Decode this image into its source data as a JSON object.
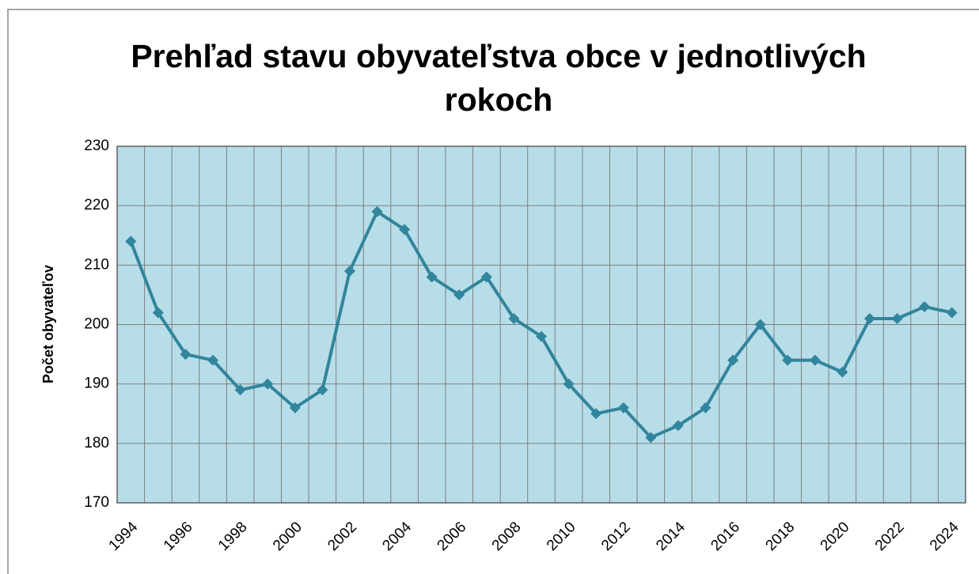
{
  "chart_data": {
    "type": "line",
    "title": "Prehľad stavu obyvateľstva obce v jednotlivých rokoch",
    "y_label": "Počet obyvateľov",
    "categories": [
      "1994",
      null,
      "1996",
      null,
      "1998",
      null,
      "2000",
      null,
      "2002",
      null,
      "2004",
      null,
      "2006",
      null,
      "2008",
      null,
      "2010",
      null,
      "2012",
      null,
      "2014",
      null,
      "2016",
      null,
      "2018",
      null,
      "2020",
      null,
      "2022",
      null,
      "2024"
    ],
    "series": [
      {
        "name": "Počet obyvateľov",
        "color": "#31859c",
        "values": [
          214,
          202,
          195,
          194,
          189,
          190,
          186,
          189,
          209,
          219,
          216,
          208,
          205,
          208,
          201,
          198,
          190,
          185,
          186,
          181,
          183,
          186,
          194,
          200,
          194,
          194,
          192,
          201,
          201,
          203,
          202
        ]
      }
    ],
    "ylim": [
      170,
      230
    ],
    "yticks": [
      170,
      180,
      190,
      200,
      210,
      220,
      230
    ],
    "grid": true,
    "plot_background": "#b7dde8"
  }
}
